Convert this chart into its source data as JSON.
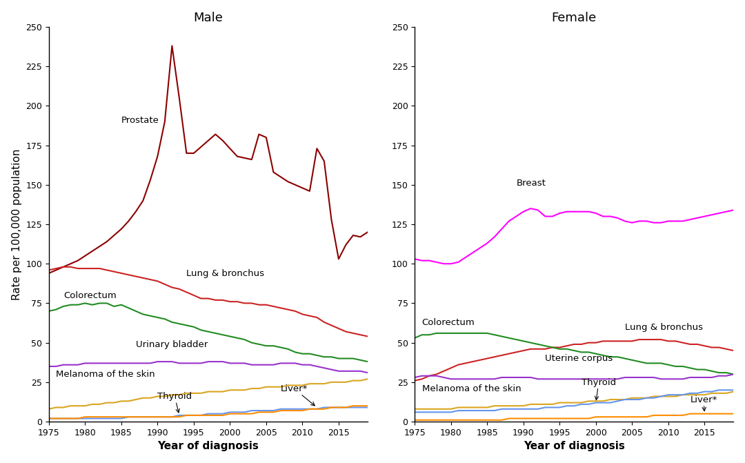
{
  "years": [
    1975,
    1976,
    1977,
    1978,
    1979,
    1980,
    1981,
    1982,
    1983,
    1984,
    1985,
    1986,
    1987,
    1988,
    1989,
    1990,
    1991,
    1992,
    1993,
    1994,
    1995,
    1996,
    1997,
    1998,
    1999,
    2000,
    2001,
    2002,
    2003,
    2004,
    2005,
    2006,
    2007,
    2008,
    2009,
    2010,
    2011,
    2012,
    2013,
    2014,
    2015,
    2016,
    2017,
    2018,
    2019
  ],
  "male": {
    "Prostate": [
      94,
      96,
      98,
      100,
      102,
      105,
      108,
      111,
      114,
      118,
      122,
      127,
      133,
      140,
      153,
      168,
      190,
      238,
      205,
      170,
      170,
      174,
      178,
      182,
      178,
      173,
      168,
      167,
      166,
      182,
      180,
      158,
      155,
      152,
      150,
      148,
      146,
      173,
      165,
      128,
      103,
      112,
      118,
      117,
      120
    ],
    "Lung & bronchus": [
      96,
      97,
      98,
      98,
      97,
      97,
      97,
      97,
      96,
      95,
      94,
      93,
      92,
      91,
      90,
      89,
      87,
      85,
      84,
      82,
      80,
      78,
      78,
      77,
      77,
      76,
      76,
      75,
      75,
      74,
      74,
      73,
      72,
      71,
      70,
      68,
      67,
      66,
      63,
      61,
      59,
      57,
      56,
      55,
      54
    ],
    "Colorectum": [
      70,
      71,
      73,
      74,
      74,
      75,
      74,
      75,
      75,
      73,
      74,
      72,
      70,
      68,
      67,
      66,
      65,
      63,
      62,
      61,
      60,
      58,
      57,
      56,
      55,
      54,
      53,
      52,
      50,
      49,
      48,
      48,
      47,
      46,
      44,
      43,
      43,
      42,
      41,
      41,
      40,
      40,
      40,
      39,
      38
    ],
    "Urinary bladder": [
      35,
      35,
      36,
      36,
      36,
      37,
      37,
      37,
      37,
      37,
      37,
      37,
      37,
      37,
      37,
      38,
      38,
      38,
      37,
      37,
      37,
      37,
      38,
      38,
      38,
      37,
      37,
      37,
      36,
      36,
      36,
      36,
      37,
      37,
      37,
      36,
      36,
      35,
      34,
      33,
      32,
      32,
      32,
      32,
      31
    ],
    "Melanoma of the skin": [
      8,
      9,
      9,
      10,
      10,
      10,
      11,
      11,
      12,
      12,
      13,
      13,
      14,
      15,
      15,
      16,
      16,
      17,
      17,
      18,
      18,
      18,
      19,
      19,
      19,
      20,
      20,
      20,
      21,
      21,
      22,
      22,
      22,
      23,
      23,
      23,
      24,
      24,
      24,
      25,
      25,
      25,
      26,
      26,
      27
    ],
    "Thyroid": [
      2,
      2,
      2,
      2,
      2,
      2,
      2,
      2,
      2,
      2,
      2,
      3,
      3,
      3,
      3,
      3,
      3,
      3,
      4,
      4,
      4,
      4,
      5,
      5,
      5,
      6,
      6,
      6,
      7,
      7,
      7,
      7,
      8,
      8,
      8,
      8,
      8,
      8,
      9,
      9,
      9,
      9,
      9,
      9,
      9
    ],
    "Liver*": [
      2,
      2,
      2,
      2,
      2,
      3,
      3,
      3,
      3,
      3,
      3,
      3,
      3,
      3,
      3,
      3,
      3,
      3,
      3,
      4,
      4,
      4,
      4,
      4,
      4,
      5,
      5,
      5,
      5,
      6,
      6,
      6,
      7,
      7,
      7,
      7,
      8,
      8,
      8,
      9,
      9,
      9,
      10,
      10,
      10
    ]
  },
  "female": {
    "Breast": [
      103,
      102,
      102,
      101,
      100,
      100,
      101,
      104,
      107,
      110,
      113,
      117,
      122,
      127,
      130,
      133,
      135,
      134,
      130,
      130,
      132,
      133,
      133,
      133,
      133,
      132,
      130,
      130,
      129,
      127,
      126,
      127,
      127,
      126,
      126,
      127,
      127,
      127,
      128,
      129,
      130,
      131,
      132,
      133,
      134
    ],
    "Lung & bronchus": [
      26,
      27,
      29,
      30,
      32,
      34,
      36,
      37,
      38,
      39,
      40,
      41,
      42,
      43,
      44,
      45,
      46,
      46,
      46,
      47,
      47,
      48,
      49,
      49,
      50,
      50,
      51,
      51,
      51,
      51,
      51,
      52,
      52,
      52,
      52,
      51,
      51,
      50,
      49,
      49,
      48,
      47,
      47,
      46,
      45
    ],
    "Colorectum": [
      53,
      55,
      55,
      56,
      56,
      56,
      56,
      56,
      56,
      56,
      56,
      55,
      54,
      53,
      52,
      51,
      50,
      49,
      48,
      47,
      46,
      46,
      45,
      44,
      44,
      43,
      42,
      41,
      41,
      40,
      39,
      38,
      37,
      37,
      37,
      36,
      35,
      35,
      34,
      33,
      33,
      32,
      31,
      31,
      30
    ],
    "Uterine corpus": [
      28,
      29,
      29,
      29,
      28,
      27,
      27,
      27,
      27,
      27,
      27,
      27,
      28,
      28,
      28,
      28,
      28,
      27,
      27,
      27,
      27,
      27,
      27,
      27,
      27,
      27,
      27,
      27,
      27,
      28,
      28,
      28,
      28,
      28,
      27,
      27,
      27,
      27,
      28,
      28,
      28,
      28,
      29,
      29,
      30
    ],
    "Melanoma of the skin": [
      8,
      8,
      8,
      8,
      8,
      8,
      9,
      9,
      9,
      9,
      9,
      10,
      10,
      10,
      10,
      10,
      11,
      11,
      11,
      11,
      12,
      12,
      12,
      12,
      13,
      13,
      13,
      14,
      14,
      14,
      15,
      15,
      15,
      16,
      16,
      16,
      16,
      17,
      17,
      17,
      17,
      18,
      18,
      18,
      19
    ],
    "Thyroid": [
      6,
      6,
      6,
      6,
      6,
      6,
      7,
      7,
      7,
      7,
      7,
      7,
      8,
      8,
      8,
      8,
      8,
      8,
      9,
      9,
      9,
      10,
      10,
      11,
      11,
      12,
      12,
      12,
      13,
      14,
      14,
      14,
      15,
      15,
      16,
      17,
      17,
      17,
      18,
      18,
      19,
      19,
      20,
      20,
      20
    ],
    "Liver*": [
      1,
      1,
      1,
      1,
      1,
      1,
      1,
      1,
      1,
      1,
      1,
      1,
      1,
      2,
      2,
      2,
      2,
      2,
      2,
      2,
      2,
      2,
      2,
      2,
      2,
      3,
      3,
      3,
      3,
      3,
      3,
      3,
      3,
      4,
      4,
      4,
      4,
      4,
      5,
      5,
      5,
      5,
      5,
      5,
      5
    ]
  },
  "colors": {
    "male": {
      "Prostate": "#8B0000",
      "Lung & bronchus": "#CC2222",
      "Colorectum": "#228B22",
      "Urinary bladder": "#9932CC",
      "Melanoma of the skin": "#DAA520",
      "Thyroid": "#6495ED",
      "Liver*": "#FF8C00"
    },
    "female": {
      "Breast": "#FF00FF",
      "Lung & bronchus": "#CC2222",
      "Colorectum": "#228B22",
      "Uterine corpus": "#9932CC",
      "Melanoma of the skin": "#DAA520",
      "Thyroid": "#6495ED",
      "Liver*": "#FF8C00"
    }
  },
  "ylim": [
    0,
    250
  ],
  "yticks": [
    0,
    25,
    50,
    75,
    100,
    125,
    150,
    175,
    200,
    225,
    250
  ],
  "xlim": [
    1975,
    2019
  ],
  "xticks": [
    1975,
    1980,
    1985,
    1990,
    1995,
    2000,
    2005,
    2010,
    2015
  ],
  "ylabel": "Rate per 100,000 population",
  "xlabel": "Year of diagnosis",
  "title_male": "Male",
  "title_female": "Female",
  "bg_color": "#FFFFFF",
  "linewidth": 1.5,
  "fontsize_title": 13,
  "fontsize_label": 11,
  "fontsize_annot": 9.5
}
